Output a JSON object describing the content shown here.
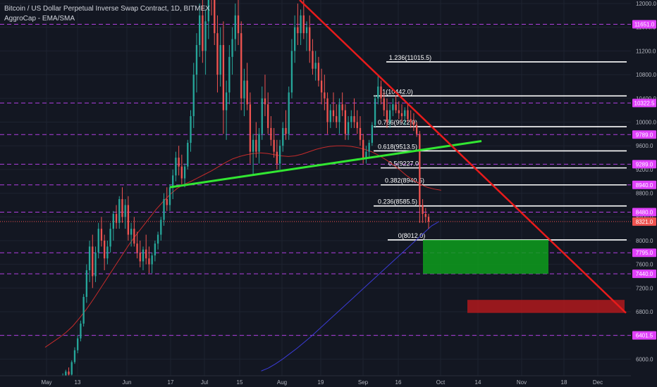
{
  "chart_data": {
    "type": "candlestick",
    "title": "Bitcoin / US Dollar Perpetual Inverse Swap Contract, 1D, BITMEX",
    "indicator": "AggroCap - EMA/SMA",
    "x_ticks": [
      "May",
      "13",
      "Jun",
      "17",
      "Jul",
      "15",
      "Aug",
      "19",
      "Sep",
      "16",
      "Oct",
      "14",
      "Nov",
      "18",
      "Dec"
    ],
    "y_ticks": [
      6000,
      6400,
      6800,
      7200,
      7600,
      8000,
      8400,
      8800,
      9200,
      9600,
      10000,
      10400,
      10800,
      11200,
      11600,
      12000
    ],
    "y_tick_labels": [
      "6000.0",
      "6400.0",
      "6800.0",
      "7200.0",
      "7600.0",
      "8000.0",
      "8400.0",
      "8800.0",
      "9200.0",
      "9600.0",
      "10000.0",
      "10400.0",
      "10800.0",
      "11200.0",
      "11600.0",
      "12000.0"
    ],
    "ylim": [
      5720,
      12060
    ],
    "horizontal_levels": [
      {
        "label": "11651.0",
        "value": 11651.0
      },
      {
        "label": "10322.5",
        "value": 10322.5
      },
      {
        "label": "9789.0",
        "value": 9789.0
      },
      {
        "label": "9289.0",
        "value": 9289.0
      },
      {
        "label": "8940.0",
        "value": 8940.0
      },
      {
        "label": "8480.0",
        "value": 8480.0
      },
      {
        "label": "7795.0",
        "value": 7795.0
      },
      {
        "label": "7440.0",
        "value": 7440.0
      },
      {
        "label": "6401.5",
        "value": 6401.5
      }
    ],
    "current_price": {
      "label": "8321.0",
      "value": 8321.0
    },
    "fib_levels": [
      {
        "label": "1.236(11015.5)",
        "value": 11015.5
      },
      {
        "label": "1(10442.0)",
        "value": 10442.0
      },
      {
        "label": "0.786(9922.0)",
        "value": 9922.0
      },
      {
        "label": "0.618(9513.5)",
        "value": 9513.5
      },
      {
        "label": "0.5(9227.0)",
        "value": 9227.0
      },
      {
        "label": "0.382(8940.5)",
        "value": 8940.5
      },
      {
        "label": "0.236(8585.5)",
        "value": 8585.5
      },
      {
        "label": "0(8012.0)",
        "value": 8012.0
      }
    ],
    "colors": {
      "background": "#131722",
      "up": "#26a69a",
      "down": "#ef5350",
      "level_line": "#b03fe0",
      "level_label_bg": "#e040fb",
      "fib_line": "#ffffff",
      "support_line": "#32e632",
      "resistance_line": "#e81b1b",
      "target_zone_1": "#0e9e1c",
      "target_zone_2": "#b0191c",
      "ema": "#c42b2b",
      "sma": "#3b3bd6"
    },
    "support_trendline": {
      "start": {
        "date_index": 47,
        "value": 8900
      },
      "end": {
        "date_index": 148,
        "value": 9680
      }
    },
    "resistance_trendline": {
      "start": {
        "date_index": 88,
        "value": 12060
      },
      "end": {
        "date_index": 185,
        "value": 6780
      }
    },
    "target_zones": [
      {
        "name": "green-zone",
        "date_start": 126,
        "date_end": 164,
        "low": 7440,
        "high": 8012
      },
      {
        "name": "red-zone",
        "date_start": 140,
        "date_end": 186,
        "low": 6780,
        "high": 7000
      }
    ],
    "candles_ohlc": [
      [
        5500,
        5560,
        5440,
        5520
      ],
      [
        5520,
        5580,
        5480,
        5510
      ],
      [
        5510,
        5600,
        5470,
        5570
      ],
      [
        5570,
        5640,
        5520,
        5600
      ],
      [
        5600,
        5700,
        5560,
        5680
      ],
      [
        5680,
        5760,
        5620,
        5720
      ],
      [
        5720,
        5820,
        5690,
        5790
      ],
      [
        5790,
        5860,
        5700,
        5740
      ],
      [
        5740,
        5980,
        5720,
        5950
      ],
      [
        5950,
        6200,
        5920,
        6150
      ],
      [
        6150,
        6400,
        6100,
        6350
      ],
      [
        6350,
        6650,
        6300,
        6600
      ],
      [
        6600,
        7100,
        6550,
        7050
      ],
      [
        7050,
        7600,
        6950,
        7500
      ],
      [
        7500,
        8000,
        7300,
        7900
      ],
      [
        7900,
        8100,
        7200,
        7400
      ],
      [
        7400,
        7900,
        7300,
        7800
      ],
      [
        7800,
        8300,
        7700,
        8200
      ],
      [
        8200,
        8400,
        7900,
        8000
      ],
      [
        8000,
        8100,
        7500,
        7700
      ],
      [
        7700,
        8000,
        7600,
        7900
      ],
      [
        7900,
        8300,
        7800,
        8200
      ],
      [
        8200,
        8500,
        8000,
        8450
      ],
      [
        8450,
        8600,
        8200,
        8300
      ],
      [
        8300,
        8750,
        8200,
        8700
      ],
      [
        8700,
        8900,
        8300,
        8400
      ],
      [
        8400,
        8700,
        8200,
        8600
      ],
      [
        8600,
        8750,
        8000,
        8100
      ],
      [
        8100,
        8300,
        7900,
        8200
      ],
      [
        8200,
        8400,
        7900,
        7950
      ],
      [
        7950,
        8150,
        7700,
        7800
      ],
      [
        7800,
        8000,
        7550,
        7650
      ],
      [
        7650,
        7900,
        7500,
        7850
      ],
      [
        7850,
        8100,
        7600,
        7700
      ],
      [
        7700,
        7900,
        7450,
        7600
      ],
      [
        7600,
        7800,
        7450,
        7750
      ],
      [
        7750,
        8000,
        7650,
        7950
      ],
      [
        7950,
        8150,
        7850,
        8100
      ],
      [
        8100,
        8400,
        8000,
        8350
      ],
      [
        8350,
        8800,
        8250,
        8700
      ],
      [
        8700,
        8900,
        8500,
        8600
      ],
      [
        8600,
        8950,
        8500,
        8900
      ],
      [
        8900,
        9200,
        8700,
        9100
      ],
      [
        9100,
        9500,
        9000,
        9400
      ],
      [
        9400,
        9600,
        9100,
        9250
      ],
      [
        9250,
        9450,
        8950,
        9050
      ],
      [
        9050,
        9300,
        8900,
        9250
      ],
      [
        9250,
        9700,
        9200,
        9650
      ],
      [
        9650,
        10200,
        9500,
        10100
      ],
      [
        10100,
        11000,
        9900,
        10800
      ],
      [
        10800,
        11500,
        10500,
        11300
      ],
      [
        11300,
        12000,
        11100,
        11800
      ],
      [
        11800,
        12400,
        11000,
        11200
      ],
      [
        11200,
        11900,
        10800,
        11700
      ],
      [
        11700,
        12500,
        11400,
        12300
      ],
      [
        12300,
        13000,
        11800,
        12200
      ],
      [
        12200,
        12600,
        11300,
        11500
      ],
      [
        11500,
        11800,
        10500,
        10800
      ],
      [
        10800,
        11600,
        10600,
        11300
      ],
      [
        11300,
        11700,
        9800,
        10200
      ],
      [
        10200,
        10700,
        9700,
        10500
      ],
      [
        10500,
        11300,
        10300,
        11100
      ],
      [
        11100,
        11600,
        10800,
        11400
      ],
      [
        11400,
        12000,
        11200,
        11800
      ],
      [
        11800,
        12200,
        11300,
        11500
      ],
      [
        11500,
        11700,
        10200,
        10400
      ],
      [
        10400,
        10900,
        10100,
        10700
      ],
      [
        10700,
        11000,
        10200,
        10300
      ],
      [
        10300,
        10500,
        9300,
        9500
      ],
      [
        9500,
        9800,
        9100,
        9700
      ],
      [
        9700,
        10000,
        9400,
        9500
      ],
      [
        9500,
        9900,
        9300,
        9800
      ],
      [
        9800,
        10600,
        9700,
        10400
      ],
      [
        10400,
        10800,
        10100,
        10300
      ],
      [
        10300,
        10500,
        9800,
        9900
      ],
      [
        9900,
        10100,
        9600,
        9700
      ],
      [
        9700,
        9900,
        9400,
        9500
      ],
      [
        9500,
        9700,
        9200,
        9300
      ],
      [
        9300,
        9700,
        9200,
        9600
      ],
      [
        9600,
        10000,
        9500,
        9900
      ],
      [
        9900,
        10200,
        9700,
        9800
      ],
      [
        9800,
        10600,
        9700,
        10500
      ],
      [
        10500,
        11400,
        10400,
        11200
      ],
      [
        11200,
        11800,
        11000,
        11600
      ],
      [
        11600,
        12000,
        11300,
        11500
      ],
      [
        11500,
        11900,
        11300,
        11800
      ],
      [
        11800,
        12100,
        11400,
        11500
      ],
      [
        11500,
        11700,
        11200,
        11600
      ],
      [
        11600,
        11800,
        11000,
        11200
      ],
      [
        11200,
        11400,
        10800,
        10900
      ],
      [
        10900,
        11200,
        10700,
        11000
      ],
      [
        11000,
        11100,
        10600,
        10700
      ],
      [
        10700,
        10900,
        10300,
        10500
      ],
      [
        10500,
        10800,
        10200,
        10400
      ],
      [
        10400,
        10500,
        9800,
        10000
      ],
      [
        10000,
        10300,
        9900,
        10200
      ],
      [
        10200,
        10500,
        10000,
        10100
      ],
      [
        10100,
        10300,
        9900,
        10000
      ],
      [
        10000,
        10400,
        9800,
        10300
      ],
      [
        10300,
        10500,
        10100,
        10200
      ],
      [
        10200,
        10300,
        9700,
        9800
      ],
      [
        9800,
        10100,
        9700,
        10000
      ],
      [
        10000,
        10200,
        9900,
        10100
      ],
      [
        10100,
        10400,
        9900,
        10000
      ],
      [
        10000,
        10200,
        9800,
        9900
      ],
      [
        9900,
        10100,
        9600,
        9700
      ],
      [
        9700,
        9800,
        9300,
        9400
      ],
      [
        9400,
        9600,
        9300,
        9500
      ],
      [
        9500,
        9700,
        9400,
        9650
      ],
      [
        9650,
        10000,
        9600,
        9950
      ],
      [
        9950,
        10450,
        9900,
        10400
      ],
      [
        10400,
        10800,
        10300,
        10600
      ],
      [
        10600,
        10700,
        10300,
        10400
      ],
      [
        10400,
        10500,
        10100,
        10200
      ],
      [
        10200,
        10400,
        9900,
        10000
      ],
      [
        10000,
        10300,
        9900,
        10200
      ],
      [
        10200,
        10400,
        10100,
        10300
      ],
      [
        10300,
        10450,
        10150,
        10200
      ],
      [
        10200,
        10350,
        10050,
        10150
      ],
      [
        10150,
        10300,
        10000,
        10100
      ],
      [
        10100,
        10250,
        9950,
        10200
      ],
      [
        10200,
        10300,
        10000,
        10050
      ],
      [
        10050,
        10200,
        9900,
        10000
      ],
      [
        10000,
        10150,
        9850,
        9950
      ],
      [
        9950,
        10000,
        9750,
        9800
      ],
      [
        9800,
        9850,
        8300,
        8600
      ],
      [
        8600,
        8700,
        8300,
        8450
      ],
      [
        8450,
        8550,
        8300,
        8400
      ],
      [
        8400,
        8450,
        8200,
        8321
      ]
    ],
    "ema_values": [
      6200,
      6280,
      6360,
      6450,
      6560,
      6700,
      6850,
      7020,
      7200,
      7380,
      7560,
      7740,
      7920,
      8080,
      8230,
      8380,
      8530,
      8660,
      8780,
      8880,
      8950,
      9000,
      9060,
      9120,
      9180,
      9250,
      9320,
      9380,
      9420,
      9450,
      9470,
      9480,
      9470,
      9450,
      9430,
      9420,
      9430,
      9460,
      9500,
      9540,
      9570,
      9590,
      9600,
      9600,
      9590,
      9570,
      9540,
      9500,
      9440,
      9370,
      9290,
      9200,
      9100,
      9020,
      8950,
      8900,
      8870,
      8850
    ],
    "sma_values": [
      5800,
      5850,
      5920,
      6000,
      6090,
      6180,
      6280,
      6380,
      6490,
      6600,
      6710,
      6820,
      6930,
      7040,
      7150,
      7260,
      7370,
      7480,
      7590,
      7700,
      7810,
      7920,
      8030,
      8140,
      8250,
      8320
    ]
  }
}
